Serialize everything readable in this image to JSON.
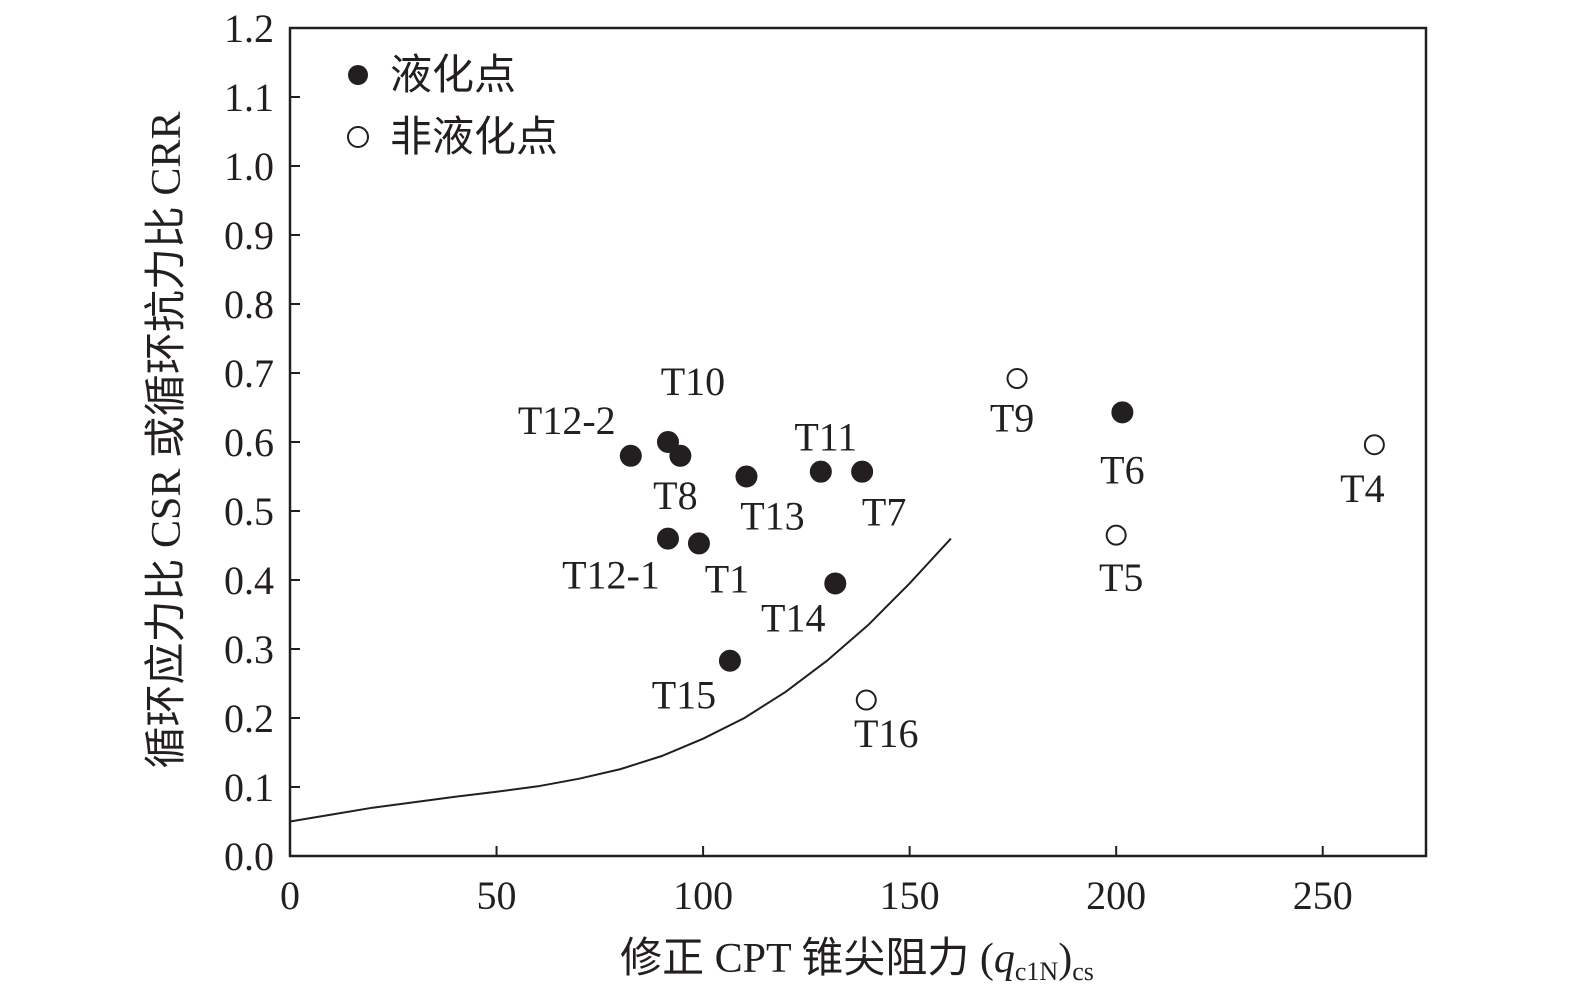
{
  "chart_data": {
    "type": "scatter",
    "xlabel_prefix": "修正 CPT 锥尖阻力 (",
    "xlabel_var": "q",
    "xlabel_var_sub": "c1N",
    "xlabel_close": ")",
    "xlabel_outer_sub": "cs",
    "ylabel": "循环应力比 CSR 或循环抗力比 CRR",
    "xlim": [
      0,
      275
    ],
    "ylim": [
      0,
      1.2
    ],
    "xticks": [
      0,
      50,
      100,
      150,
      200,
      250
    ],
    "xtick_labels": [
      "0",
      "50",
      "100",
      "150",
      "200",
      "250"
    ],
    "yticks": [
      0,
      0.1,
      0.2,
      0.3,
      0.4,
      0.5,
      0.6,
      0.7,
      0.8,
      0.9,
      1.0,
      1.1,
      1.2
    ],
    "ytick_labels": [
      "0.0",
      "0.1",
      "0.2",
      "0.3",
      "0.4",
      "0.5",
      "0.6",
      "0.7",
      "0.8",
      "0.9",
      "1.0",
      "1.1",
      "1.2"
    ],
    "legend_position": "top-left",
    "grid": false,
    "series": [
      {
        "name": "液化点",
        "marker": "filled-circle",
        "color": "#231f20",
        "points": [
          {
            "label": "T12-2",
            "x": 82.5,
            "y": 0.58
          },
          {
            "label": "T10",
            "x": 91.5,
            "y": 0.6
          },
          {
            "label": "T8",
            "x": 94.5,
            "y": 0.58
          },
          {
            "label": "T13",
            "x": 110.5,
            "y": 0.55
          },
          {
            "label": "T11",
            "x": 128.5,
            "y": 0.557
          },
          {
            "label": "T7",
            "x": 138.5,
            "y": 0.557
          },
          {
            "label": "T12-1",
            "x": 91.5,
            "y": 0.46
          },
          {
            "label": "T1",
            "x": 99,
            "y": 0.453
          },
          {
            "label": "T14",
            "x": 132,
            "y": 0.395
          },
          {
            "label": "T15",
            "x": 106.5,
            "y": 0.283
          },
          {
            "label": "T6",
            "x": 201.5,
            "y": 0.643
          }
        ]
      },
      {
        "name": "非液化点",
        "marker": "open-circle",
        "color": "#231f20",
        "points": [
          {
            "label": "T9",
            "x": 176,
            "y": 0.692
          },
          {
            "label": "T5",
            "x": 200,
            "y": 0.465
          },
          {
            "label": "T4",
            "x": 262.5,
            "y": 0.596
          },
          {
            "label": "T16",
            "x": 139.5,
            "y": 0.226
          }
        ]
      }
    ],
    "curve": {
      "name": "",
      "color": "#231f20",
      "x": [
        0,
        10,
        20,
        30,
        40,
        50,
        60,
        70,
        80,
        90,
        100,
        110,
        120,
        130,
        140,
        150,
        160
      ],
      "y": [
        0.05,
        0.06,
        0.07,
        0.078,
        0.086,
        0.093,
        0.101,
        0.112,
        0.126,
        0.145,
        0.17,
        0.2,
        0.238,
        0.283,
        0.335,
        0.395,
        0.46
      ]
    }
  }
}
